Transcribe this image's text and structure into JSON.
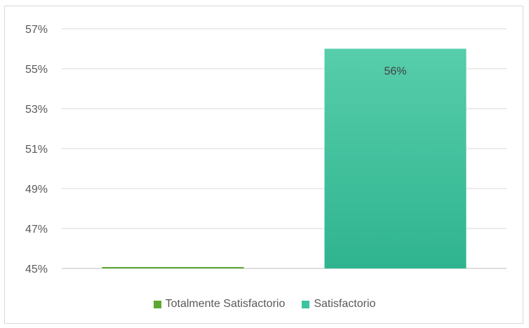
{
  "chart_data": {
    "type": "bar",
    "title": "",
    "xlabel": "",
    "ylabel": "",
    "categories": [
      "Totalmente Satisfactorio",
      "Satisfactorio"
    ],
    "values": [
      45,
      56
    ],
    "value_labels": [
      "",
      "56%"
    ],
    "ylim": [
      45,
      57
    ],
    "yticks": [
      45,
      47,
      49,
      51,
      53,
      55,
      57
    ],
    "ytick_labels": [
      "45%",
      "47%",
      "49%",
      "51%",
      "53%",
      "55%",
      "57%"
    ],
    "colors": [
      "#5aa832",
      "#3cc4a0"
    ],
    "grid": true,
    "legend": {
      "placement": "bottom",
      "entries": [
        {
          "label": "Totalmente Satisfactorio",
          "color": "#5aa832"
        },
        {
          "label": "Satisfactorio",
          "color": "#3cc4a0"
        }
      ]
    }
  }
}
